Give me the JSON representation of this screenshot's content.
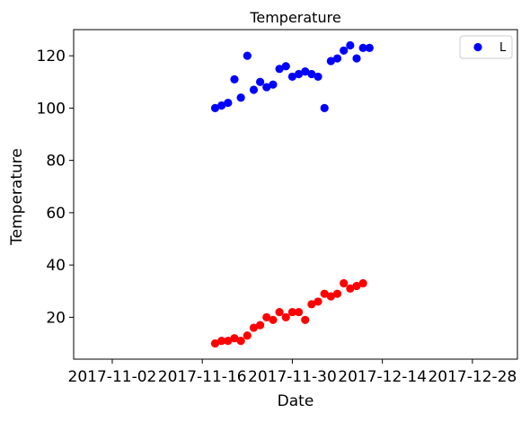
{
  "chart_data": {
    "type": "scatter",
    "title": "Temperature",
    "xlabel": "Date",
    "ylabel": "Temperature",
    "xlim": [
      "2017-10-27",
      "2018-01-04"
    ],
    "ylim": [
      4,
      130
    ],
    "xticks": [
      "2017-11-02",
      "2017-11-16",
      "2017-11-30",
      "2017-12-14",
      "2017-12-28"
    ],
    "yticks": [
      20,
      40,
      60,
      80,
      100,
      120
    ],
    "grid": false,
    "legend": {
      "placement": "top-right",
      "entries": [
        {
          "label": "L",
          "color": "#0000ff"
        }
      ]
    },
    "series": [
      {
        "name": "L",
        "color": "#0000ff",
        "x": [
          "2017-11-18",
          "2017-11-19",
          "2017-11-20",
          "2017-11-21",
          "2017-11-22",
          "2017-11-23",
          "2017-11-24",
          "2017-11-25",
          "2017-11-26",
          "2017-11-27",
          "2017-11-28",
          "2017-11-29",
          "2017-11-30",
          "2017-12-01",
          "2017-12-02",
          "2017-12-03",
          "2017-12-04",
          "2017-12-05",
          "2017-12-06",
          "2017-12-07",
          "2017-12-08",
          "2017-12-09",
          "2017-12-10",
          "2017-12-11",
          "2017-12-12"
        ],
        "y": [
          100,
          101,
          102,
          111,
          104,
          120,
          107,
          110,
          108,
          109,
          115,
          116,
          112,
          113,
          114,
          113,
          112,
          100,
          118,
          119,
          122,
          124,
          119,
          123,
          123
        ]
      },
      {
        "color": "#ff0000",
        "x": [
          "2017-11-18",
          "2017-11-19",
          "2017-11-20",
          "2017-11-21",
          "2017-11-22",
          "2017-11-23",
          "2017-11-24",
          "2017-11-25",
          "2017-11-26",
          "2017-11-27",
          "2017-11-28",
          "2017-11-29",
          "2017-11-30",
          "2017-12-01",
          "2017-12-02",
          "2017-12-03",
          "2017-12-04",
          "2017-12-05",
          "2017-12-06",
          "2017-12-07",
          "2017-12-08",
          "2017-12-09",
          "2017-12-10",
          "2017-12-11"
        ],
        "y": [
          10,
          11,
          11,
          12,
          11,
          13,
          16,
          17,
          20,
          19,
          22,
          20,
          22,
          22,
          19,
          25,
          26,
          29,
          28,
          29,
          33,
          31,
          32,
          33
        ]
      }
    ]
  }
}
